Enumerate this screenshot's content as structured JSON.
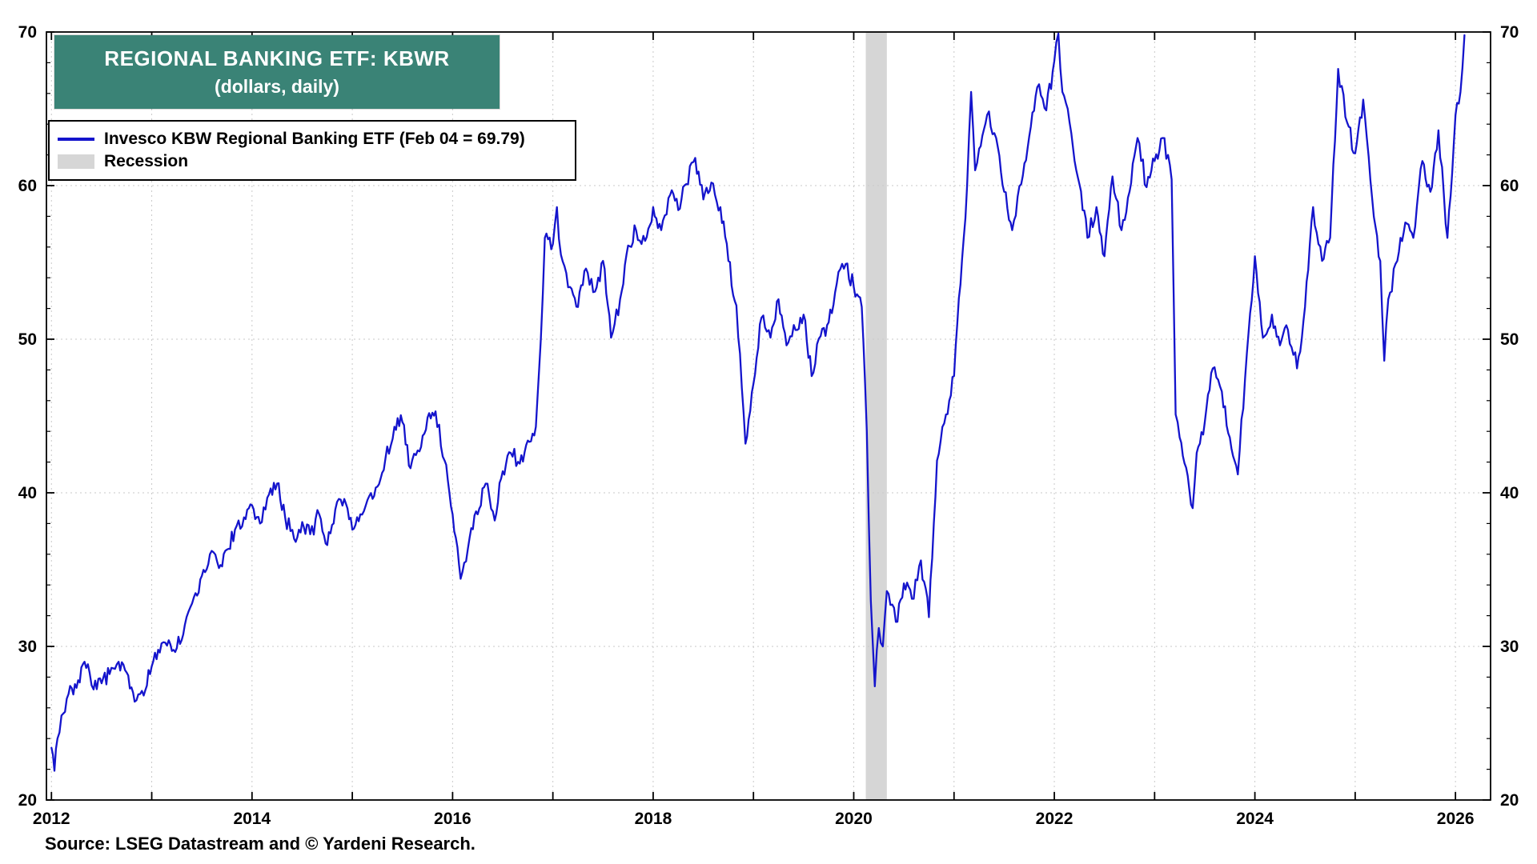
{
  "page": {
    "background": "#ffffff"
  },
  "title_box": {
    "line1": "REGIONAL BANKING ETF: KBWR",
    "line2": "(dollars, daily)",
    "bg_color": "#3A8376",
    "text_color": "#ffffff"
  },
  "legend": {
    "series_label": "Invesco KBW Regional Banking ETF (Feb 04 = 69.79)",
    "recession_label": "Recession",
    "line_color": "#1414CC",
    "recession_color": "#D6D6D6"
  },
  "source": {
    "text": "Source: LSEG Datastream and © Yardeni Research."
  },
  "chart_data": {
    "type": "line",
    "title": "REGIONAL BANKING ETF: KBWR (dollars, daily)",
    "xlabel": "",
    "ylabel": "dollars",
    "xlim": [
      2011.95,
      2026.35
    ],
    "ylim": [
      20,
      70
    ],
    "x_ticks_labeled": [
      2012,
      2014,
      2016,
      2018,
      2020,
      2022,
      2024,
      2026
    ],
    "y_ticks": [
      20,
      30,
      40,
      50,
      60,
      70
    ],
    "y_minor_step": 2,
    "grid": "dotted",
    "grid_color": "#c9c9c9",
    "line_color": "#1414CC",
    "recession_color": "#D6D6D6",
    "texture_amplitude": 0.55,
    "recession_bands": [
      {
        "start": 2020.12,
        "end": 2020.33
      }
    ],
    "last_point": {
      "date_label": "Feb 04",
      "value": 69.79
    },
    "series": [
      {
        "name": "Invesco KBW Regional Banking ETF",
        "points": [
          [
            2012.0,
            23.4
          ],
          [
            2012.03,
            21.9
          ],
          [
            2012.06,
            24.0
          ],
          [
            2012.1,
            25.5
          ],
          [
            2012.17,
            26.9
          ],
          [
            2012.25,
            27.3
          ],
          [
            2012.33,
            29.0
          ],
          [
            2012.38,
            28.3
          ],
          [
            2012.42,
            27.2
          ],
          [
            2012.5,
            27.6
          ],
          [
            2012.58,
            28.2
          ],
          [
            2012.67,
            29.0
          ],
          [
            2012.75,
            28.3
          ],
          [
            2012.83,
            26.4
          ],
          [
            2012.92,
            26.8
          ],
          [
            2013.0,
            28.7
          ],
          [
            2013.08,
            29.6
          ],
          [
            2013.17,
            30.4
          ],
          [
            2013.25,
            29.9
          ],
          [
            2013.33,
            31.4
          ],
          [
            2013.42,
            33.2
          ],
          [
            2013.5,
            34.6
          ],
          [
            2013.58,
            36.0
          ],
          [
            2013.67,
            35.1
          ],
          [
            2013.75,
            36.3
          ],
          [
            2013.83,
            37.6
          ],
          [
            2013.92,
            38.4
          ],
          [
            2014.0,
            39.2
          ],
          [
            2014.08,
            38.0
          ],
          [
            2014.17,
            39.9
          ],
          [
            2014.25,
            40.6
          ],
          [
            2014.33,
            38.4
          ],
          [
            2014.42,
            37.0
          ],
          [
            2014.5,
            38.1
          ],
          [
            2014.58,
            37.3
          ],
          [
            2014.67,
            38.6
          ],
          [
            2014.75,
            36.6
          ],
          [
            2014.83,
            38.9
          ],
          [
            2014.92,
            39.6
          ],
          [
            2015.0,
            37.6
          ],
          [
            2015.08,
            38.6
          ],
          [
            2015.17,
            39.8
          ],
          [
            2015.25,
            40.4
          ],
          [
            2015.33,
            42.2
          ],
          [
            2015.42,
            44.3
          ],
          [
            2015.5,
            44.6
          ],
          [
            2015.58,
            41.6
          ],
          [
            2015.67,
            42.7
          ],
          [
            2015.75,
            44.9
          ],
          [
            2015.83,
            45.3
          ],
          [
            2015.92,
            42.1
          ],
          [
            2016.0,
            38.6
          ],
          [
            2016.08,
            34.4
          ],
          [
            2016.17,
            37.1
          ],
          [
            2016.25,
            38.6
          ],
          [
            2016.33,
            40.6
          ],
          [
            2016.42,
            38.2
          ],
          [
            2016.5,
            41.4
          ],
          [
            2016.58,
            42.6
          ],
          [
            2016.67,
            41.9
          ],
          [
            2016.75,
            43.4
          ],
          [
            2016.83,
            44.3
          ],
          [
            2016.88,
            50.0
          ],
          [
            2016.92,
            56.6
          ],
          [
            2017.0,
            56.2
          ],
          [
            2017.04,
            58.6
          ],
          [
            2017.08,
            55.5
          ],
          [
            2017.17,
            53.4
          ],
          [
            2017.25,
            52.1
          ],
          [
            2017.33,
            54.6
          ],
          [
            2017.42,
            53.1
          ],
          [
            2017.5,
            55.1
          ],
          [
            2017.58,
            50.1
          ],
          [
            2017.67,
            52.6
          ],
          [
            2017.75,
            56.1
          ],
          [
            2017.83,
            57.1
          ],
          [
            2017.92,
            56.4
          ],
          [
            2018.0,
            58.6
          ],
          [
            2018.08,
            57.1
          ],
          [
            2018.17,
            59.4
          ],
          [
            2018.25,
            58.4
          ],
          [
            2018.33,
            60.1
          ],
          [
            2018.42,
            61.8
          ],
          [
            2018.5,
            59.1
          ],
          [
            2018.58,
            60.2
          ],
          [
            2018.67,
            58.6
          ],
          [
            2018.75,
            55.1
          ],
          [
            2018.83,
            52.2
          ],
          [
            2018.92,
            43.2
          ],
          [
            2019.0,
            47.1
          ],
          [
            2019.08,
            51.4
          ],
          [
            2019.17,
            50.1
          ],
          [
            2019.25,
            52.6
          ],
          [
            2019.33,
            49.6
          ],
          [
            2019.42,
            50.6
          ],
          [
            2019.5,
            51.6
          ],
          [
            2019.58,
            47.6
          ],
          [
            2019.67,
            50.2
          ],
          [
            2019.75,
            51.1
          ],
          [
            2019.83,
            53.6
          ],
          [
            2019.92,
            54.9
          ],
          [
            2020.0,
            53.4
          ],
          [
            2020.08,
            52.1
          ],
          [
            2020.13,
            44.0
          ],
          [
            2020.17,
            33.0
          ],
          [
            2020.21,
            27.4
          ],
          [
            2020.25,
            31.2
          ],
          [
            2020.29,
            30.0
          ],
          [
            2020.33,
            33.6
          ],
          [
            2020.42,
            31.6
          ],
          [
            2020.5,
            34.1
          ],
          [
            2020.58,
            33.1
          ],
          [
            2020.67,
            35.6
          ],
          [
            2020.75,
            31.9
          ],
          [
            2020.83,
            42.1
          ],
          [
            2020.92,
            45.1
          ],
          [
            2021.0,
            47.6
          ],
          [
            2021.08,
            55.2
          ],
          [
            2021.13,
            60.0
          ],
          [
            2021.17,
            66.1
          ],
          [
            2021.21,
            61.0
          ],
          [
            2021.25,
            62.4
          ],
          [
            2021.33,
            64.6
          ],
          [
            2021.42,
            63.1
          ],
          [
            2021.5,
            59.6
          ],
          [
            2021.58,
            57.1
          ],
          [
            2021.67,
            60.1
          ],
          [
            2021.75,
            63.2
          ],
          [
            2021.83,
            66.4
          ],
          [
            2021.92,
            64.9
          ],
          [
            2022.0,
            68.1
          ],
          [
            2022.04,
            69.9
          ],
          [
            2022.08,
            66.1
          ],
          [
            2022.17,
            63.4
          ],
          [
            2022.25,
            60.1
          ],
          [
            2022.33,
            56.6
          ],
          [
            2022.42,
            58.6
          ],
          [
            2022.5,
            55.4
          ],
          [
            2022.58,
            60.6
          ],
          [
            2022.67,
            57.1
          ],
          [
            2022.75,
            59.6
          ],
          [
            2022.83,
            63.1
          ],
          [
            2022.92,
            59.9
          ],
          [
            2023.0,
            61.6
          ],
          [
            2023.08,
            63.1
          ],
          [
            2023.17,
            60.4
          ],
          [
            2023.21,
            45.1
          ],
          [
            2023.25,
            43.6
          ],
          [
            2023.33,
            41.1
          ],
          [
            2023.38,
            39.0
          ],
          [
            2023.42,
            42.6
          ],
          [
            2023.5,
            44.6
          ],
          [
            2023.58,
            48.1
          ],
          [
            2023.67,
            46.6
          ],
          [
            2023.75,
            43.6
          ],
          [
            2023.83,
            41.2
          ],
          [
            2023.92,
            49.1
          ],
          [
            2024.0,
            55.4
          ],
          [
            2024.08,
            50.1
          ],
          [
            2024.17,
            51.6
          ],
          [
            2024.25,
            49.6
          ],
          [
            2024.33,
            50.6
          ],
          [
            2024.42,
            48.1
          ],
          [
            2024.5,
            52.1
          ],
          [
            2024.58,
            58.6
          ],
          [
            2024.67,
            55.1
          ],
          [
            2024.75,
            56.6
          ],
          [
            2024.83,
            67.6
          ],
          [
            2024.92,
            64.1
          ],
          [
            2025.0,
            62.1
          ],
          [
            2025.08,
            65.6
          ],
          [
            2025.17,
            59.1
          ],
          [
            2025.25,
            55.1
          ],
          [
            2025.29,
            48.6
          ],
          [
            2025.33,
            52.6
          ],
          [
            2025.42,
            55.1
          ],
          [
            2025.5,
            57.6
          ],
          [
            2025.58,
            56.6
          ],
          [
            2025.67,
            61.6
          ],
          [
            2025.75,
            59.6
          ],
          [
            2025.83,
            63.6
          ],
          [
            2025.92,
            56.6
          ],
          [
            2026.0,
            64.6
          ],
          [
            2026.05,
            66.1
          ],
          [
            2026.09,
            69.79
          ]
        ]
      }
    ]
  }
}
